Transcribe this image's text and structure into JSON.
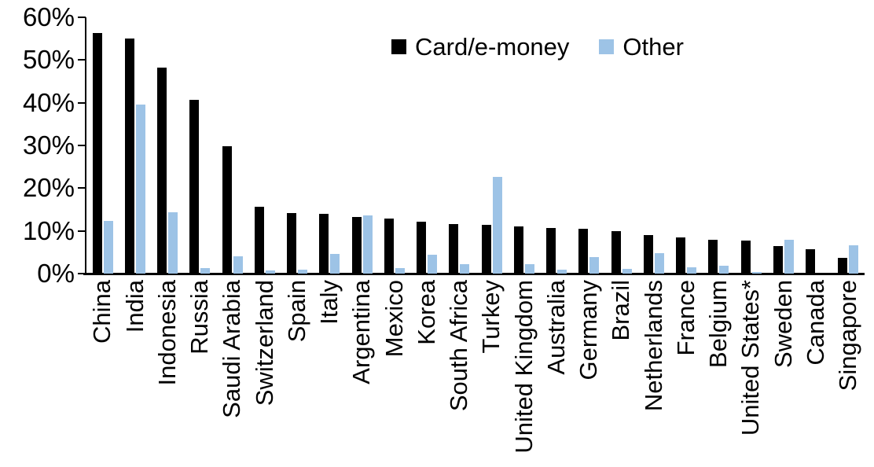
{
  "chart_data": {
    "type": "bar",
    "title": "",
    "xlabel": "",
    "ylabel": "",
    "ylim": [
      0,
      60
    ],
    "yticks": [
      0,
      10,
      20,
      30,
      40,
      50,
      60
    ],
    "ytick_suffix": "%",
    "grid": false,
    "legend_position": "top-center",
    "categories": [
      "China",
      "India",
      "Indonesia",
      "Russia",
      "Saudi Arabia",
      "Switzerland",
      "Spain",
      "Italy",
      "Argentina",
      "Mexico",
      "Korea",
      "South Africa",
      "Turkey",
      "United Kingdom",
      "Australia",
      "Germany",
      "Brazil",
      "Netherlands",
      "France",
      "Belgium",
      "United States*",
      "Sweden",
      "Canada",
      "Singapore"
    ],
    "series": [
      {
        "name": "Card/e-money",
        "color": "#000000",
        "values": [
          56.4,
          55.1,
          48.3,
          40.6,
          29.9,
          15.7,
          14.2,
          14.0,
          13.2,
          12.9,
          12.1,
          11.6,
          11.4,
          11.0,
          10.7,
          10.5,
          9.9,
          9.0,
          8.4,
          8.0,
          7.7,
          6.4,
          5.7,
          3.7
        ]
      },
      {
        "name": "Other",
        "color": "#9DC3E6",
        "values": [
          12.3,
          39.6,
          14.4,
          1.2,
          4.0,
          0.8,
          1.0,
          4.6,
          13.7,
          1.2,
          4.5,
          2.3,
          22.6,
          2.3,
          1.0,
          3.9,
          1.1,
          4.7,
          1.4,
          1.9,
          0.3,
          7.9,
          0,
          6.6
        ]
      }
    ]
  }
}
